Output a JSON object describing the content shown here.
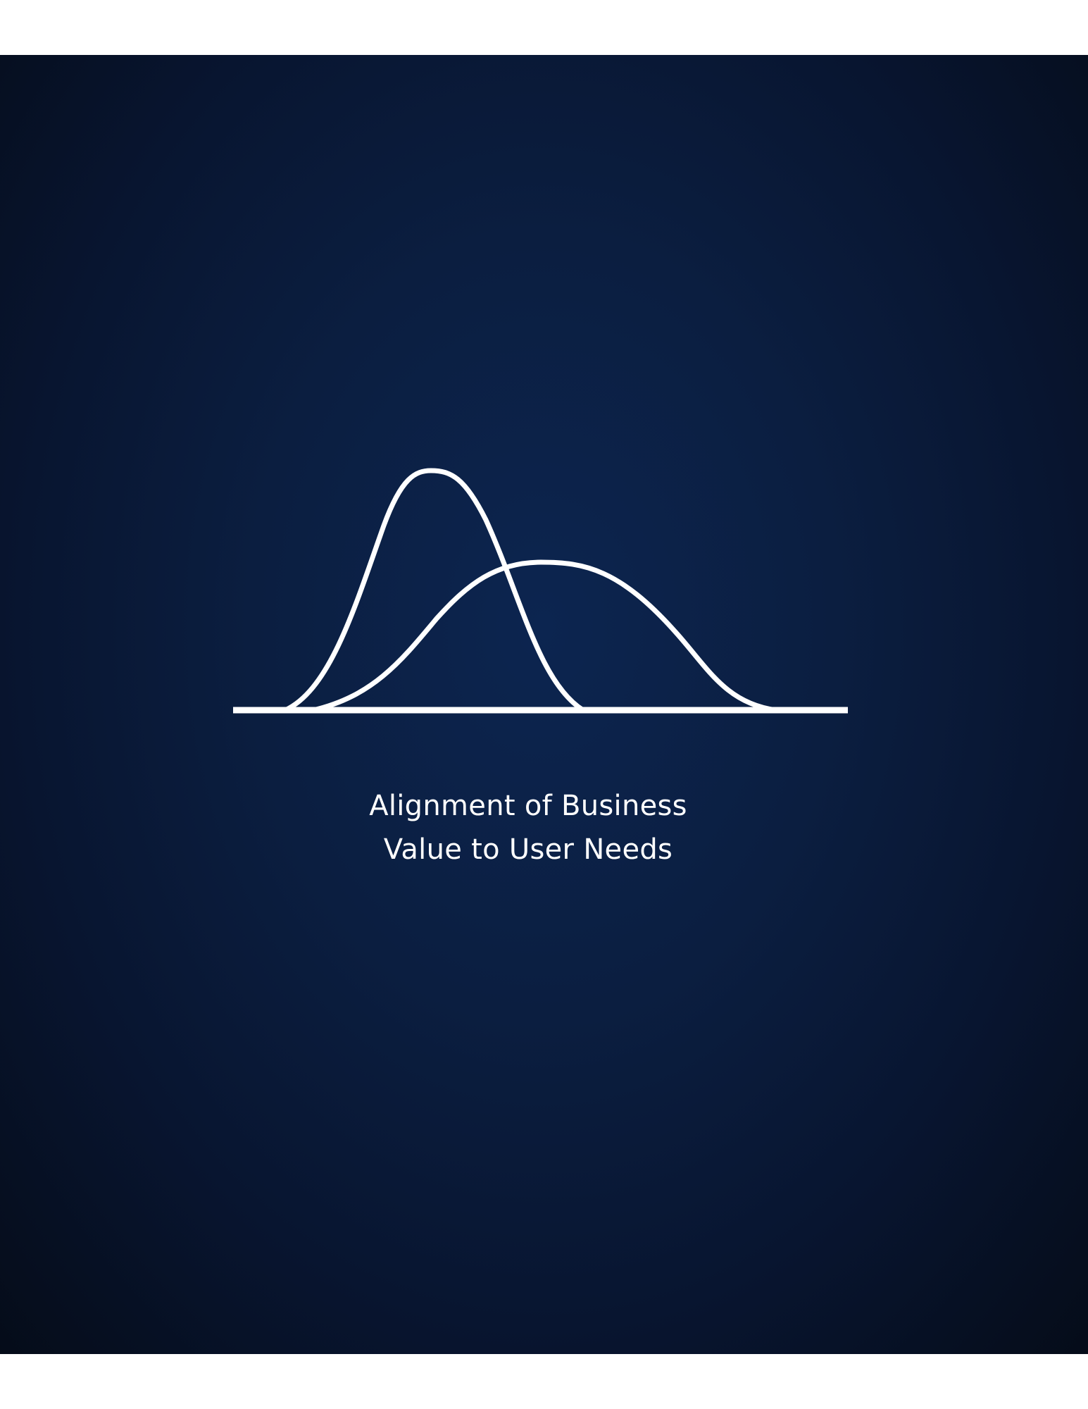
{
  "caption": {
    "line1": "Alignment of Business",
    "line2": "Value to User Needs"
  },
  "colors": {
    "background_center": "#0c2550",
    "background_edge": "#050c19",
    "stroke": "#ffffff",
    "text": "#ffffff"
  }
}
